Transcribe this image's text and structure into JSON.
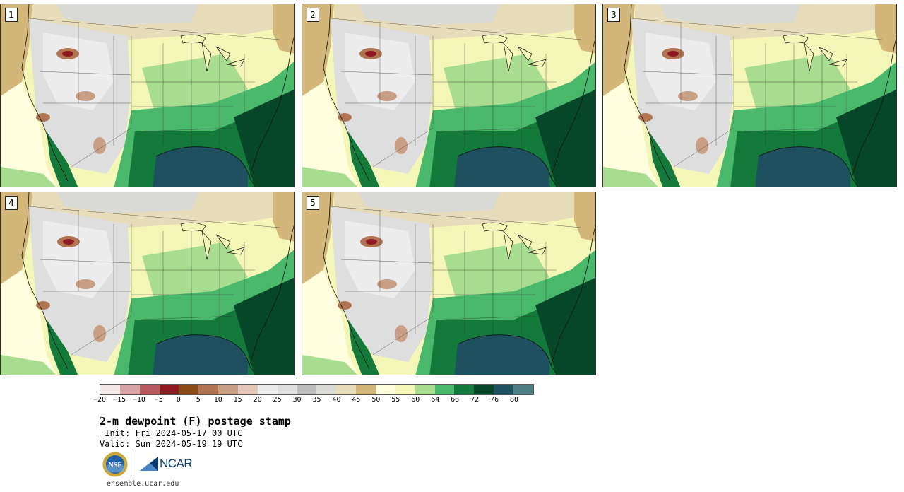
{
  "title": "2-m dewpoint (F) postage stamp",
  "init_text": " Init: Fri 2024-05-17 00 UTC",
  "valid_text": "Valid: Sun 2024-05-19 19 UTC",
  "site": "ensemble.ucar.edu",
  "logos": {
    "nsf": "NSF",
    "ncar": "NCAR"
  },
  "panels": [
    {
      "label": "1"
    },
    {
      "label": "2"
    },
    {
      "label": "3"
    },
    {
      "label": "4"
    },
    {
      "label": "5"
    }
  ],
  "colorbar": {
    "colors": [
      "#f3e9e9",
      "#d8a3a6",
      "#b65a5f",
      "#8f1a22",
      "#8a4a17",
      "#b07453",
      "#c89e84",
      "#e3c8b9",
      "#ececec",
      "#dedede",
      "#bdbdbd",
      "#d9d9d6",
      "#e7dcb9",
      "#d2b67a",
      "#ffffe0",
      "#f4f6b8",
      "#a8dc90",
      "#49b86a",
      "#137a3b",
      "#06472a",
      "#1f5060",
      "#4f7f84"
    ],
    "tick_labels": [
      "−20",
      "−15",
      "−10",
      "−5",
      "0",
      "5",
      "10",
      "15",
      "20",
      "25",
      "30",
      "35",
      "40",
      "45",
      "50",
      "55",
      "60",
      "64",
      "68",
      "72",
      "76",
      "80"
    ]
  }
}
